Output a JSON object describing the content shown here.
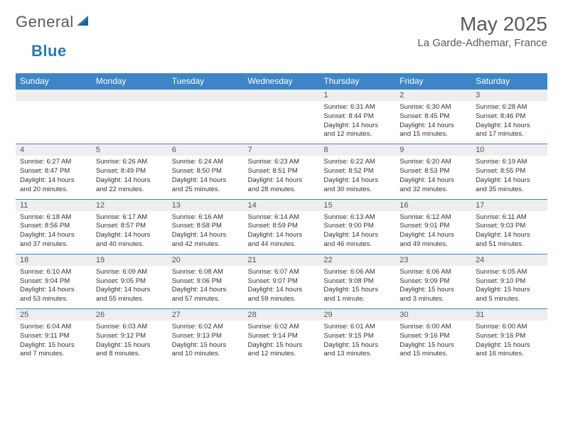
{
  "brand": {
    "part1": "General",
    "part2": "Blue"
  },
  "title": "May 2025",
  "location": "La Garde-Adhemar, France",
  "colors": {
    "header_bg": "#3d85c6",
    "header_text": "#ffffff",
    "daynum_bg": "#eeeeee",
    "rule": "#3d85c6",
    "text": "#333333",
    "title_text": "#5a5a5a"
  },
  "weekdays": [
    "Sunday",
    "Monday",
    "Tuesday",
    "Wednesday",
    "Thursday",
    "Friday",
    "Saturday"
  ],
  "weeks": [
    [
      null,
      null,
      null,
      null,
      {
        "n": "1",
        "sunrise": "6:31 AM",
        "sunset": "8:44 PM",
        "day_h": 14,
        "day_m": 12
      },
      {
        "n": "2",
        "sunrise": "6:30 AM",
        "sunset": "8:45 PM",
        "day_h": 14,
        "day_m": 15
      },
      {
        "n": "3",
        "sunrise": "6:28 AM",
        "sunset": "8:46 PM",
        "day_h": 14,
        "day_m": 17
      }
    ],
    [
      {
        "n": "4",
        "sunrise": "6:27 AM",
        "sunset": "8:47 PM",
        "day_h": 14,
        "day_m": 20
      },
      {
        "n": "5",
        "sunrise": "6:26 AM",
        "sunset": "8:49 PM",
        "day_h": 14,
        "day_m": 22
      },
      {
        "n": "6",
        "sunrise": "6:24 AM",
        "sunset": "8:50 PM",
        "day_h": 14,
        "day_m": 25
      },
      {
        "n": "7",
        "sunrise": "6:23 AM",
        "sunset": "8:51 PM",
        "day_h": 14,
        "day_m": 28
      },
      {
        "n": "8",
        "sunrise": "6:22 AM",
        "sunset": "8:52 PM",
        "day_h": 14,
        "day_m": 30
      },
      {
        "n": "9",
        "sunrise": "6:20 AM",
        "sunset": "8:53 PM",
        "day_h": 14,
        "day_m": 32
      },
      {
        "n": "10",
        "sunrise": "6:19 AM",
        "sunset": "8:55 PM",
        "day_h": 14,
        "day_m": 35
      }
    ],
    [
      {
        "n": "11",
        "sunrise": "6:18 AM",
        "sunset": "8:56 PM",
        "day_h": 14,
        "day_m": 37
      },
      {
        "n": "12",
        "sunrise": "6:17 AM",
        "sunset": "8:57 PM",
        "day_h": 14,
        "day_m": 40
      },
      {
        "n": "13",
        "sunrise": "6:16 AM",
        "sunset": "8:58 PM",
        "day_h": 14,
        "day_m": 42
      },
      {
        "n": "14",
        "sunrise": "6:14 AM",
        "sunset": "8:59 PM",
        "day_h": 14,
        "day_m": 44
      },
      {
        "n": "15",
        "sunrise": "6:13 AM",
        "sunset": "9:00 PM",
        "day_h": 14,
        "day_m": 46
      },
      {
        "n": "16",
        "sunrise": "6:12 AM",
        "sunset": "9:01 PM",
        "day_h": 14,
        "day_m": 49
      },
      {
        "n": "17",
        "sunrise": "6:11 AM",
        "sunset": "9:03 PM",
        "day_h": 14,
        "day_m": 51
      }
    ],
    [
      {
        "n": "18",
        "sunrise": "6:10 AM",
        "sunset": "9:04 PM",
        "day_h": 14,
        "day_m": 53
      },
      {
        "n": "19",
        "sunrise": "6:09 AM",
        "sunset": "9:05 PM",
        "day_h": 14,
        "day_m": 55
      },
      {
        "n": "20",
        "sunrise": "6:08 AM",
        "sunset": "9:06 PM",
        "day_h": 14,
        "day_m": 57
      },
      {
        "n": "21",
        "sunrise": "6:07 AM",
        "sunset": "9:07 PM",
        "day_h": 14,
        "day_m": 59
      },
      {
        "n": "22",
        "sunrise": "6:06 AM",
        "sunset": "9:08 PM",
        "day_h": 15,
        "day_m": 1
      },
      {
        "n": "23",
        "sunrise": "6:06 AM",
        "sunset": "9:09 PM",
        "day_h": 15,
        "day_m": 3
      },
      {
        "n": "24",
        "sunrise": "6:05 AM",
        "sunset": "9:10 PM",
        "day_h": 15,
        "day_m": 5
      }
    ],
    [
      {
        "n": "25",
        "sunrise": "6:04 AM",
        "sunset": "9:11 PM",
        "day_h": 15,
        "day_m": 7
      },
      {
        "n": "26",
        "sunrise": "6:03 AM",
        "sunset": "9:12 PM",
        "day_h": 15,
        "day_m": 8
      },
      {
        "n": "27",
        "sunrise": "6:02 AM",
        "sunset": "9:13 PM",
        "day_h": 15,
        "day_m": 10
      },
      {
        "n": "28",
        "sunrise": "6:02 AM",
        "sunset": "9:14 PM",
        "day_h": 15,
        "day_m": 12
      },
      {
        "n": "29",
        "sunrise": "6:01 AM",
        "sunset": "9:15 PM",
        "day_h": 15,
        "day_m": 13
      },
      {
        "n": "30",
        "sunrise": "6:00 AM",
        "sunset": "9:16 PM",
        "day_h": 15,
        "day_m": 15
      },
      {
        "n": "31",
        "sunrise": "6:00 AM",
        "sunset": "9:16 PM",
        "day_h": 15,
        "day_m": 16
      }
    ]
  ],
  "labels": {
    "sunrise": "Sunrise:",
    "sunset": "Sunset:",
    "daylight": "Daylight:",
    "hours": "hours",
    "and": "and",
    "minute": "minute",
    "minutes": "minutes"
  }
}
